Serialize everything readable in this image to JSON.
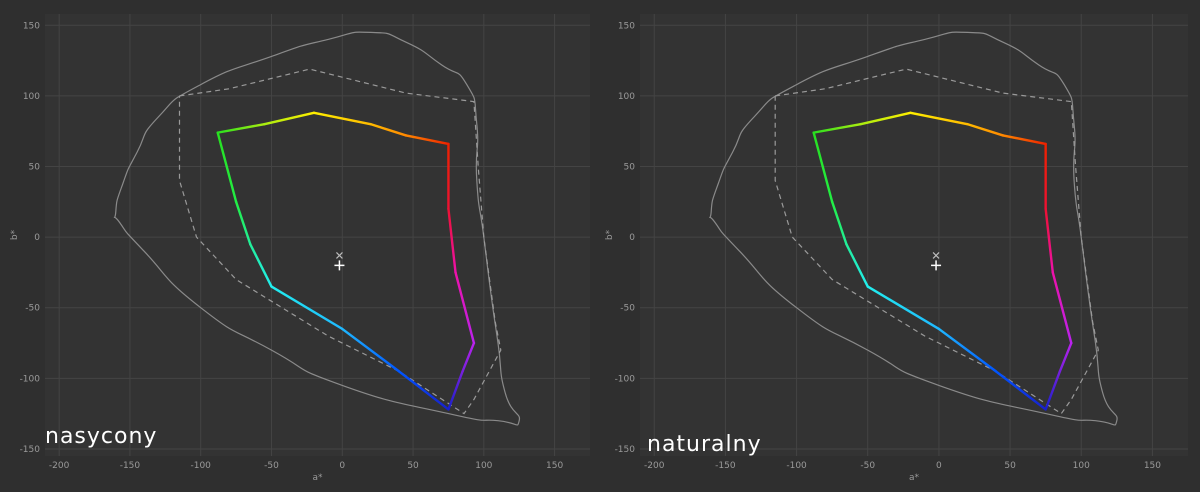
{
  "chart_data": [
    {
      "type": "line",
      "title": "nasycony",
      "xlabel": "a*",
      "ylabel": "b*",
      "xlim": [
        -210,
        175
      ],
      "ylim": [
        -155,
        158
      ],
      "xticks": [
        -200,
        -150,
        -100,
        -50,
        0,
        50,
        100,
        150
      ],
      "yticks": [
        -150,
        -100,
        -50,
        0,
        50,
        100,
        150
      ],
      "grid": true,
      "white_point_plus": [
        -2,
        -20
      ],
      "white_point_x": [
        -2,
        -13
      ],
      "outer_gamut": [
        [
          -160,
          18
        ],
        [
          -155,
          38
        ],
        [
          -145,
          60
        ],
        [
          -130,
          85
        ],
        [
          -100,
          108
        ],
        [
          -50,
          128
        ],
        [
          -10,
          140
        ],
        [
          20,
          145
        ],
        [
          45,
          138
        ],
        [
          70,
          122
        ],
        [
          88,
          108
        ],
        [
          95,
          80
        ],
        [
          95,
          40
        ],
        [
          100,
          0
        ],
        [
          105,
          -40
        ],
        [
          110,
          -75
        ],
        [
          115,
          -110
        ],
        [
          125,
          -130
        ],
        [
          110,
          -130
        ],
        [
          75,
          -125
        ],
        [
          0,
          -105
        ],
        [
          -50,
          -80
        ],
        [
          -100,
          -50
        ],
        [
          -140,
          -10
        ],
        [
          -157,
          10
        ],
        [
          -160,
          18
        ]
      ],
      "reference_gamut": [
        [
          -115,
          100
        ],
        [
          -80,
          105
        ],
        [
          -23,
          119
        ],
        [
          45,
          102
        ],
        [
          93,
          96
        ],
        [
          96,
          50
        ],
        [
          100,
          0
        ],
        [
          108,
          -60
        ],
        [
          112,
          -80
        ],
        [
          93,
          -115
        ],
        [
          86,
          -125
        ],
        [
          40,
          -95
        ],
        [
          -10,
          -70
        ],
        [
          -75,
          -30
        ],
        [
          -103,
          0
        ],
        [
          -115,
          40
        ],
        [
          -115,
          100
        ]
      ],
      "series": [
        {
          "points": [
            [
              -88,
              74
            ],
            [
              -55,
              80
            ],
            [
              -20,
              88
            ],
            [
              20,
              80
            ],
            [
              45,
              72
            ],
            [
              75,
              66
            ],
            [
              75,
              20
            ],
            [
              80,
              -25
            ],
            [
              93,
              -75
            ],
            [
              85,
              -95
            ],
            [
              75,
              -122
            ],
            [
              40,
              -95
            ],
            [
              0,
              -65
            ],
            [
              -50,
              -35
            ],
            [
              -65,
              -5
            ],
            [
              -75,
              25
            ],
            [
              -88,
              74
            ]
          ],
          "colors": [
            "#28e020",
            "#aaee10",
            "#ffee00",
            "#ffbb00",
            "#ff8800",
            "#ee2200",
            "#ee1133",
            "#ee11aa",
            "#bb22ee",
            "#7720dd",
            "#1820cc",
            "#0055ff",
            "#1fb8ff",
            "#22eeee",
            "#22ee99",
            "#22ee44",
            "#28e020"
          ]
        }
      ]
    },
    {
      "type": "line",
      "title": "naturalny",
      "xlabel": "a*",
      "ylabel": "b*",
      "xlim": [
        -210,
        175
      ],
      "ylim": [
        -155,
        158
      ],
      "xticks": [
        -200,
        -150,
        -100,
        -50,
        0,
        50,
        100,
        150
      ],
      "yticks": [
        -150,
        -100,
        -50,
        0,
        50,
        100,
        150
      ],
      "grid": true,
      "white_point_plus": [
        -2,
        -20
      ],
      "white_point_x": [
        -2,
        -13
      ],
      "outer_gamut": [
        [
          -160,
          18
        ],
        [
          -155,
          38
        ],
        [
          -145,
          60
        ],
        [
          -130,
          85
        ],
        [
          -100,
          108
        ],
        [
          -50,
          128
        ],
        [
          -10,
          140
        ],
        [
          20,
          145
        ],
        [
          45,
          138
        ],
        [
          70,
          122
        ],
        [
          88,
          108
        ],
        [
          95,
          80
        ],
        [
          95,
          40
        ],
        [
          100,
          0
        ],
        [
          105,
          -40
        ],
        [
          110,
          -75
        ],
        [
          115,
          -110
        ],
        [
          125,
          -130
        ],
        [
          110,
          -130
        ],
        [
          75,
          -125
        ],
        [
          0,
          -105
        ],
        [
          -50,
          -80
        ],
        [
          -100,
          -50
        ],
        [
          -140,
          -10
        ],
        [
          -157,
          10
        ],
        [
          -160,
          18
        ]
      ],
      "reference_gamut": [
        [
          -115,
          100
        ],
        [
          -80,
          105
        ],
        [
          -23,
          119
        ],
        [
          45,
          102
        ],
        [
          93,
          96
        ],
        [
          96,
          50
        ],
        [
          100,
          0
        ],
        [
          108,
          -60
        ],
        [
          112,
          -80
        ],
        [
          93,
          -115
        ],
        [
          86,
          -125
        ],
        [
          40,
          -95
        ],
        [
          -10,
          -70
        ],
        [
          -75,
          -30
        ],
        [
          -103,
          0
        ],
        [
          -115,
          40
        ],
        [
          -115,
          100
        ]
      ],
      "series": [
        {
          "points": [
            [
              -88,
              74
            ],
            [
              -55,
              80
            ],
            [
              -20,
              88
            ],
            [
              20,
              80
            ],
            [
              45,
              72
            ],
            [
              75,
              66
            ],
            [
              75,
              20
            ],
            [
              80,
              -25
            ],
            [
              93,
              -75
            ],
            [
              85,
              -95
            ],
            [
              75,
              -122
            ],
            [
              40,
              -95
            ],
            [
              0,
              -65
            ],
            [
              -50,
              -35
            ],
            [
              -65,
              -5
            ],
            [
              -75,
              25
            ],
            [
              -88,
              74
            ]
          ],
          "colors": [
            "#28e020",
            "#aaee10",
            "#ffee00",
            "#ffbb00",
            "#ff8800",
            "#ee2200",
            "#ee1133",
            "#ee11aa",
            "#bb22ee",
            "#7720dd",
            "#1820cc",
            "#0055ff",
            "#1fb8ff",
            "#22eeee",
            "#22ee99",
            "#22ee44",
            "#28e020"
          ]
        }
      ]
    }
  ],
  "colors": {
    "background": "#2f2f2f",
    "plot_background": "#333333",
    "grid": "#444444",
    "outer_gamut": "#8a8a8a",
    "reference_gamut": "#9a9a9a"
  }
}
